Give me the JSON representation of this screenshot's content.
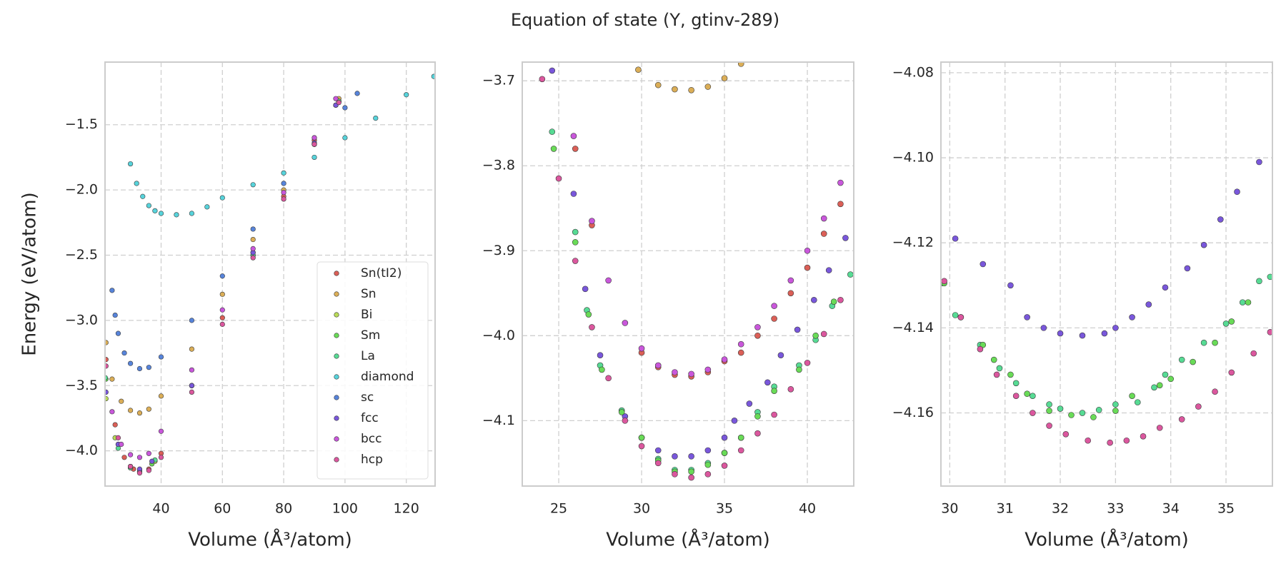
{
  "title": "Equation of state (Y, gtinv-289)",
  "chart_data": [
    {
      "type": "scatter",
      "xlabel": "Volume (Å³/atom)",
      "ylabel": "Energy (eV/atom)",
      "xlim": [
        21.7,
        129.4
      ],
      "ylim": [
        -4.27,
        -1.02
      ],
      "xticks": [
        40,
        60,
        80,
        100,
        120
      ],
      "yticks": [
        {
          "value": -4.0,
          "label": "−4.0"
        },
        {
          "value": -3.5,
          "label": "−3.5"
        },
        {
          "value": -3.0,
          "label": "−3.0"
        },
        {
          "value": -2.5,
          "label": "−2.5"
        },
        {
          "value": -2.0,
          "label": "−2.0"
        },
        {
          "value": -1.5,
          "label": "−1.5"
        }
      ],
      "grid": true,
      "legend": "lower right",
      "series": [
        {
          "name": "Sn(tI2)",
          "color": "#db5f57",
          "x": [
            22,
            25,
            28,
            31,
            33,
            36,
            40,
            50,
            60,
            70,
            80,
            90,
            98
          ],
          "values": [
            -3.3,
            -3.8,
            -4.05,
            -4.14,
            -4.16,
            -4.14,
            -4.02,
            -3.5,
            -2.98,
            -2.48,
            -2.05,
            -1.62,
            -1.32
          ]
        },
        {
          "name": "Sn",
          "color": "#dbae57",
          "x": [
            22,
            24,
            27,
            30,
            33,
            36,
            40,
            50,
            60,
            70,
            80,
            90,
            98
          ],
          "values": [
            -3.17,
            -3.45,
            -3.62,
            -3.69,
            -3.71,
            -3.68,
            -3.58,
            -3.22,
            -2.8,
            -2.38,
            -2.0,
            -1.6,
            -1.3
          ]
        },
        {
          "name": "Bi",
          "color": "#b9db57",
          "x": [
            22,
            25,
            30,
            33,
            38,
            50,
            70,
            90,
            97
          ],
          "values": [
            -3.6,
            -3.9,
            -4.12,
            -4.15,
            -4.08,
            -3.5,
            -2.5,
            -1.65,
            -1.35
          ]
        },
        {
          "name": "Sm",
          "color": "#69db57",
          "x": [
            22,
            26,
            30,
            33,
            37,
            50,
            70,
            90,
            97
          ],
          "values": [
            -3.45,
            -3.95,
            -4.13,
            -4.16,
            -4.1,
            -3.5,
            -2.5,
            -1.65,
            -1.35
          ]
        },
        {
          "name": "La",
          "color": "#57db94",
          "x": [
            21.8,
            26,
            30,
            33,
            38,
            50,
            70,
            90,
            98
          ],
          "values": [
            -3.44,
            -3.98,
            -4.13,
            -4.16,
            -4.07,
            -3.5,
            -2.5,
            -1.65,
            -1.32
          ]
        },
        {
          "name": "diamond",
          "color": "#57d3db",
          "x": [
            30,
            32,
            34,
            36,
            38,
            40,
            45,
            50,
            55,
            60,
            70,
            80,
            90,
            100,
            110,
            120,
            129
          ],
          "values": [
            -1.8,
            -1.95,
            -2.05,
            -2.12,
            -2.16,
            -2.18,
            -2.19,
            -2.18,
            -2.13,
            -2.06,
            -1.96,
            -1.87,
            -1.75,
            -1.6,
            -1.45,
            -1.27,
            -1.13
          ]
        },
        {
          "name": "sc",
          "color": "#5784db",
          "x": [
            24,
            25,
            26,
            28,
            30,
            33,
            36,
            40,
            50,
            60,
            70,
            80,
            90,
            100,
            104
          ],
          "values": [
            -2.77,
            -2.96,
            -3.1,
            -3.25,
            -3.33,
            -3.37,
            -3.36,
            -3.28,
            -3.0,
            -2.66,
            -2.3,
            -1.95,
            -1.65,
            -1.37,
            -1.26
          ]
        },
        {
          "name": "fcc",
          "color": "#7957db",
          "x": [
            22,
            26,
            30,
            33,
            37,
            50,
            70,
            90,
            97
          ],
          "values": [
            -3.55,
            -3.95,
            -4.12,
            -4.14,
            -4.08,
            -3.5,
            -2.48,
            -1.64,
            -1.35
          ]
        },
        {
          "name": "bcc",
          "color": "#c957db",
          "x": [
            24,
            27,
            30,
            33,
            36,
            40,
            50,
            60,
            70,
            80,
            90,
            97
          ],
          "values": [
            -3.7,
            -3.95,
            -4.03,
            -4.05,
            -4.02,
            -3.85,
            -3.38,
            -2.92,
            -2.45,
            -2.02,
            -1.6,
            -1.3
          ]
        },
        {
          "name": "hcp",
          "color": "#db579e",
          "x": [
            22,
            26,
            30,
            33,
            36,
            40,
            50,
            60,
            70,
            80,
            90,
            98
          ],
          "values": [
            -3.35,
            -3.9,
            -4.12,
            -4.17,
            -4.15,
            -4.05,
            -3.55,
            -3.03,
            -2.52,
            -2.07,
            -1.65,
            -1.33
          ]
        }
      ]
    },
    {
      "type": "scatter",
      "xlabel": "Volume (Å³/atom)",
      "xlim": [
        22.8,
        42.8
      ],
      "ylim": [
        -4.177,
        -3.678
      ],
      "xticks": [
        25,
        30,
        35,
        40
      ],
      "yticks": [
        {
          "value": -4.1,
          "label": "−4.1"
        },
        {
          "value": -4.0,
          "label": "−4.0"
        },
        {
          "value": -3.9,
          "label": "−3.9"
        },
        {
          "value": -3.8,
          "label": "−3.8"
        },
        {
          "value": -3.7,
          "label": "−3.7"
        }
      ],
      "grid": true,
      "series": [
        {
          "color": "#dbae57",
          "x": [
            29.8,
            31,
            32,
            33,
            34,
            35,
            36
          ],
          "values": [
            -3.687,
            -3.705,
            -3.71,
            -3.711,
            -3.707,
            -3.697,
            -3.68
          ]
        },
        {
          "color": "#db5f57",
          "x": [
            26,
            27,
            30,
            31,
            32,
            33,
            34,
            35,
            36,
            37,
            38,
            39,
            40,
            41,
            42
          ],
          "values": [
            -3.78,
            -3.87,
            -4.02,
            -4.037,
            -4.046,
            -4.048,
            -4.043,
            -4.03,
            -4.02,
            -4.0,
            -3.98,
            -3.95,
            -3.92,
            -3.88,
            -3.845
          ]
        },
        {
          "color": "#c957db",
          "x": [
            25.9,
            27,
            28,
            29,
            30,
            31,
            32,
            33,
            34,
            35,
            36,
            37,
            38,
            39,
            40,
            41,
            42
          ],
          "values": [
            -3.765,
            -3.865,
            -3.935,
            -3.985,
            -4.015,
            -4.035,
            -4.043,
            -4.045,
            -4.04,
            -4.028,
            -4.01,
            -3.99,
            -3.965,
            -3.935,
            -3.9,
            -3.862,
            -3.82
          ]
        },
        {
          "color": "#7957db",
          "x": [
            24.6,
            25.9,
            26.6,
            27.5,
            29,
            30,
            31,
            32,
            33,
            34,
            35,
            35.6,
            36.5,
            37.6,
            38.4,
            39.4,
            40.4,
            41.3,
            42.3
          ],
          "values": [
            -3.688,
            -3.833,
            -3.945,
            -4.023,
            -4.095,
            -4.12,
            -4.135,
            -4.142,
            -4.142,
            -4.135,
            -4.12,
            -4.1,
            -4.08,
            -4.055,
            -4.023,
            -3.993,
            -3.958,
            -3.923,
            -3.885
          ]
        },
        {
          "color": "#57db94",
          "x": [
            24.6,
            26,
            26.7,
            27.5,
            28.8,
            30,
            31,
            32,
            33,
            34,
            35,
            36,
            37,
            38,
            39.5,
            40.5,
            41.5,
            42.6
          ],
          "values": [
            -3.76,
            -3.878,
            -3.97,
            -4.035,
            -4.088,
            -4.12,
            -4.145,
            -4.158,
            -4.158,
            -4.15,
            -4.138,
            -4.12,
            -4.09,
            -4.06,
            -4.035,
            -4.005,
            -3.965,
            -3.928
          ]
        },
        {
          "color": "#69db57",
          "x": [
            24.7,
            26,
            26.8,
            27.6,
            28.8,
            30,
            31,
            32,
            33,
            34,
            35,
            36,
            37,
            38,
            39.5,
            40.5,
            41.6
          ],
          "values": [
            -3.78,
            -3.89,
            -3.975,
            -4.04,
            -4.09,
            -4.12,
            -4.147,
            -4.16,
            -4.16,
            -4.152,
            -4.138,
            -4.12,
            -4.095,
            -4.065,
            -4.04,
            -4.0,
            -3.96
          ]
        },
        {
          "color": "#db579e",
          "x": [
            24,
            25,
            26,
            27,
            28,
            29,
            30,
            31,
            32,
            33,
            34,
            35,
            36,
            37,
            38,
            39,
            40,
            41,
            42
          ],
          "values": [
            -3.698,
            -3.815,
            -3.912,
            -3.99,
            -4.05,
            -4.1,
            -4.13,
            -4.15,
            -4.163,
            -4.167,
            -4.163,
            -4.153,
            -4.135,
            -4.115,
            -4.093,
            -4.063,
            -4.032,
            -3.998,
            -3.958
          ]
        }
      ]
    },
    {
      "type": "scatter",
      "xlabel": "Volume (Å³/atom)",
      "xlim": [
        29.84,
        35.84
      ],
      "ylim": [
        -4.1772,
        -4.0775
      ],
      "xticks": [
        30,
        31,
        32,
        33,
        34,
        35
      ],
      "yticks": [
        {
          "value": -4.16,
          "label": "−4.16"
        },
        {
          "value": -4.14,
          "label": "−4.14"
        },
        {
          "value": -4.12,
          "label": "−4.12"
        },
        {
          "value": -4.1,
          "label": "−4.10"
        },
        {
          "value": -4.08,
          "label": "−4.08"
        }
      ],
      "grid": true,
      "series": [
        {
          "color": "#db5f57",
          "x": [
            30.2
          ],
          "values": [
            -4.1375
          ]
        },
        {
          "color": "#7957db",
          "x": [
            30.1,
            30.6,
            31.1,
            31.4,
            31.7,
            32.0,
            32.4,
            32.8,
            33.0,
            33.3,
            33.6,
            33.9,
            34.3,
            34.6,
            34.9,
            35.2,
            35.6
          ],
          "values": [
            -4.119,
            -4.125,
            -4.13,
            -4.1375,
            -4.14,
            -4.1413,
            -4.1418,
            -4.1413,
            -4.14,
            -4.1375,
            -4.1345,
            -4.1305,
            -4.126,
            -4.1205,
            -4.1145,
            -4.108,
            -4.101
          ]
        },
        {
          "color": "#57db94",
          "x": [
            29.85,
            30.1,
            30.55,
            30.9,
            31.2,
            31.5,
            31.8,
            32.0,
            32.4,
            32.7,
            33.0,
            33.4,
            33.7,
            33.9,
            34.2,
            34.6,
            35.0,
            35.3,
            35.6,
            35.8
          ],
          "values": [
            -4.1295,
            -4.137,
            -4.144,
            -4.1495,
            -4.153,
            -4.156,
            -4.158,
            -4.159,
            -4.16,
            -4.1593,
            -4.158,
            -4.1575,
            -4.154,
            -4.151,
            -4.1475,
            -4.1435,
            -4.139,
            -4.134,
            -4.129,
            -4.128
          ]
        },
        {
          "color": "#69db57",
          "x": [
            29.9,
            30.6,
            30.8,
            31.1,
            31.4,
            31.8,
            32.2,
            32.6,
            33.0,
            33.3,
            33.8,
            34.0,
            34.4,
            34.8,
            35.1,
            35.4
          ],
          "values": [
            -4.1295,
            -4.144,
            -4.1475,
            -4.151,
            -4.1555,
            -4.1595,
            -4.1605,
            -4.161,
            -4.1595,
            -4.156,
            -4.1535,
            -4.152,
            -4.148,
            -4.1435,
            -4.1385,
            -4.134
          ]
        },
        {
          "color": "#db579e",
          "x": [
            29.9,
            30.2,
            30.55,
            30.85,
            31.2,
            31.5,
            31.8,
            32.1,
            32.5,
            32.9,
            33.2,
            33.5,
            33.8,
            34.2,
            34.5,
            34.8,
            35.1,
            35.5,
            35.8
          ],
          "values": [
            -4.129,
            -4.1375,
            -4.145,
            -4.151,
            -4.156,
            -4.16,
            -4.163,
            -4.165,
            -4.1665,
            -4.167,
            -4.1665,
            -4.1655,
            -4.1635,
            -4.1615,
            -4.1585,
            -4.155,
            -4.1505,
            -4.146,
            -4.141
          ]
        }
      ]
    }
  ]
}
